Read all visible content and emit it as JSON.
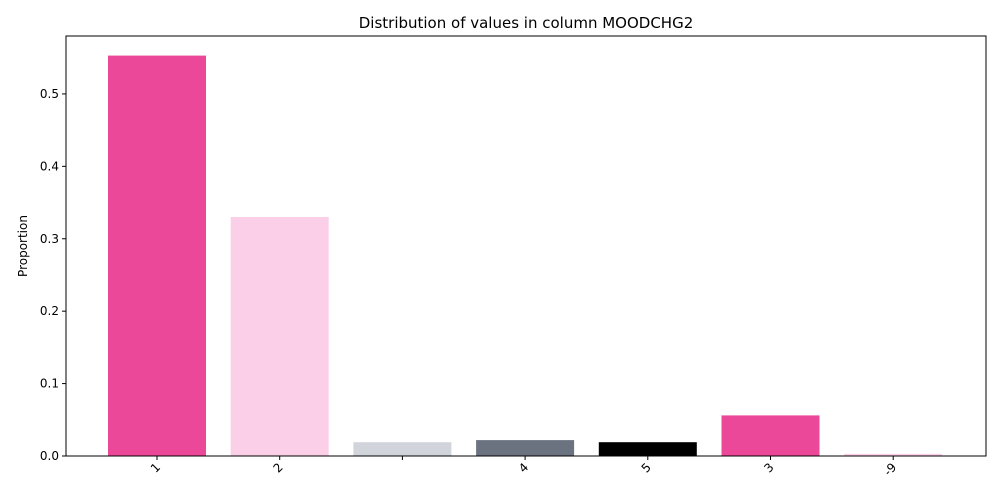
{
  "chart_data": {
    "type": "bar",
    "title": "Distribution of values in column MOODCHG2",
    "xlabel": "",
    "ylabel": "Proportion",
    "categories": [
      "1",
      "2",
      "",
      "4",
      "5",
      "3",
      "-9"
    ],
    "values": [
      0.553,
      0.33,
      0.019,
      0.022,
      0.019,
      0.056,
      0.003
    ],
    "colors": [
      "#ec4899",
      "#fbcfe8",
      "#d1d5db",
      "#6b7280",
      "#000000",
      "#ec4899",
      "#fbcfe8"
    ],
    "ylim": [
      0,
      0.58
    ],
    "yticks": [
      "0.0",
      "0.1",
      "0.2",
      "0.3",
      "0.4",
      "0.5"
    ],
    "grid": false,
    "legend": "none"
  }
}
